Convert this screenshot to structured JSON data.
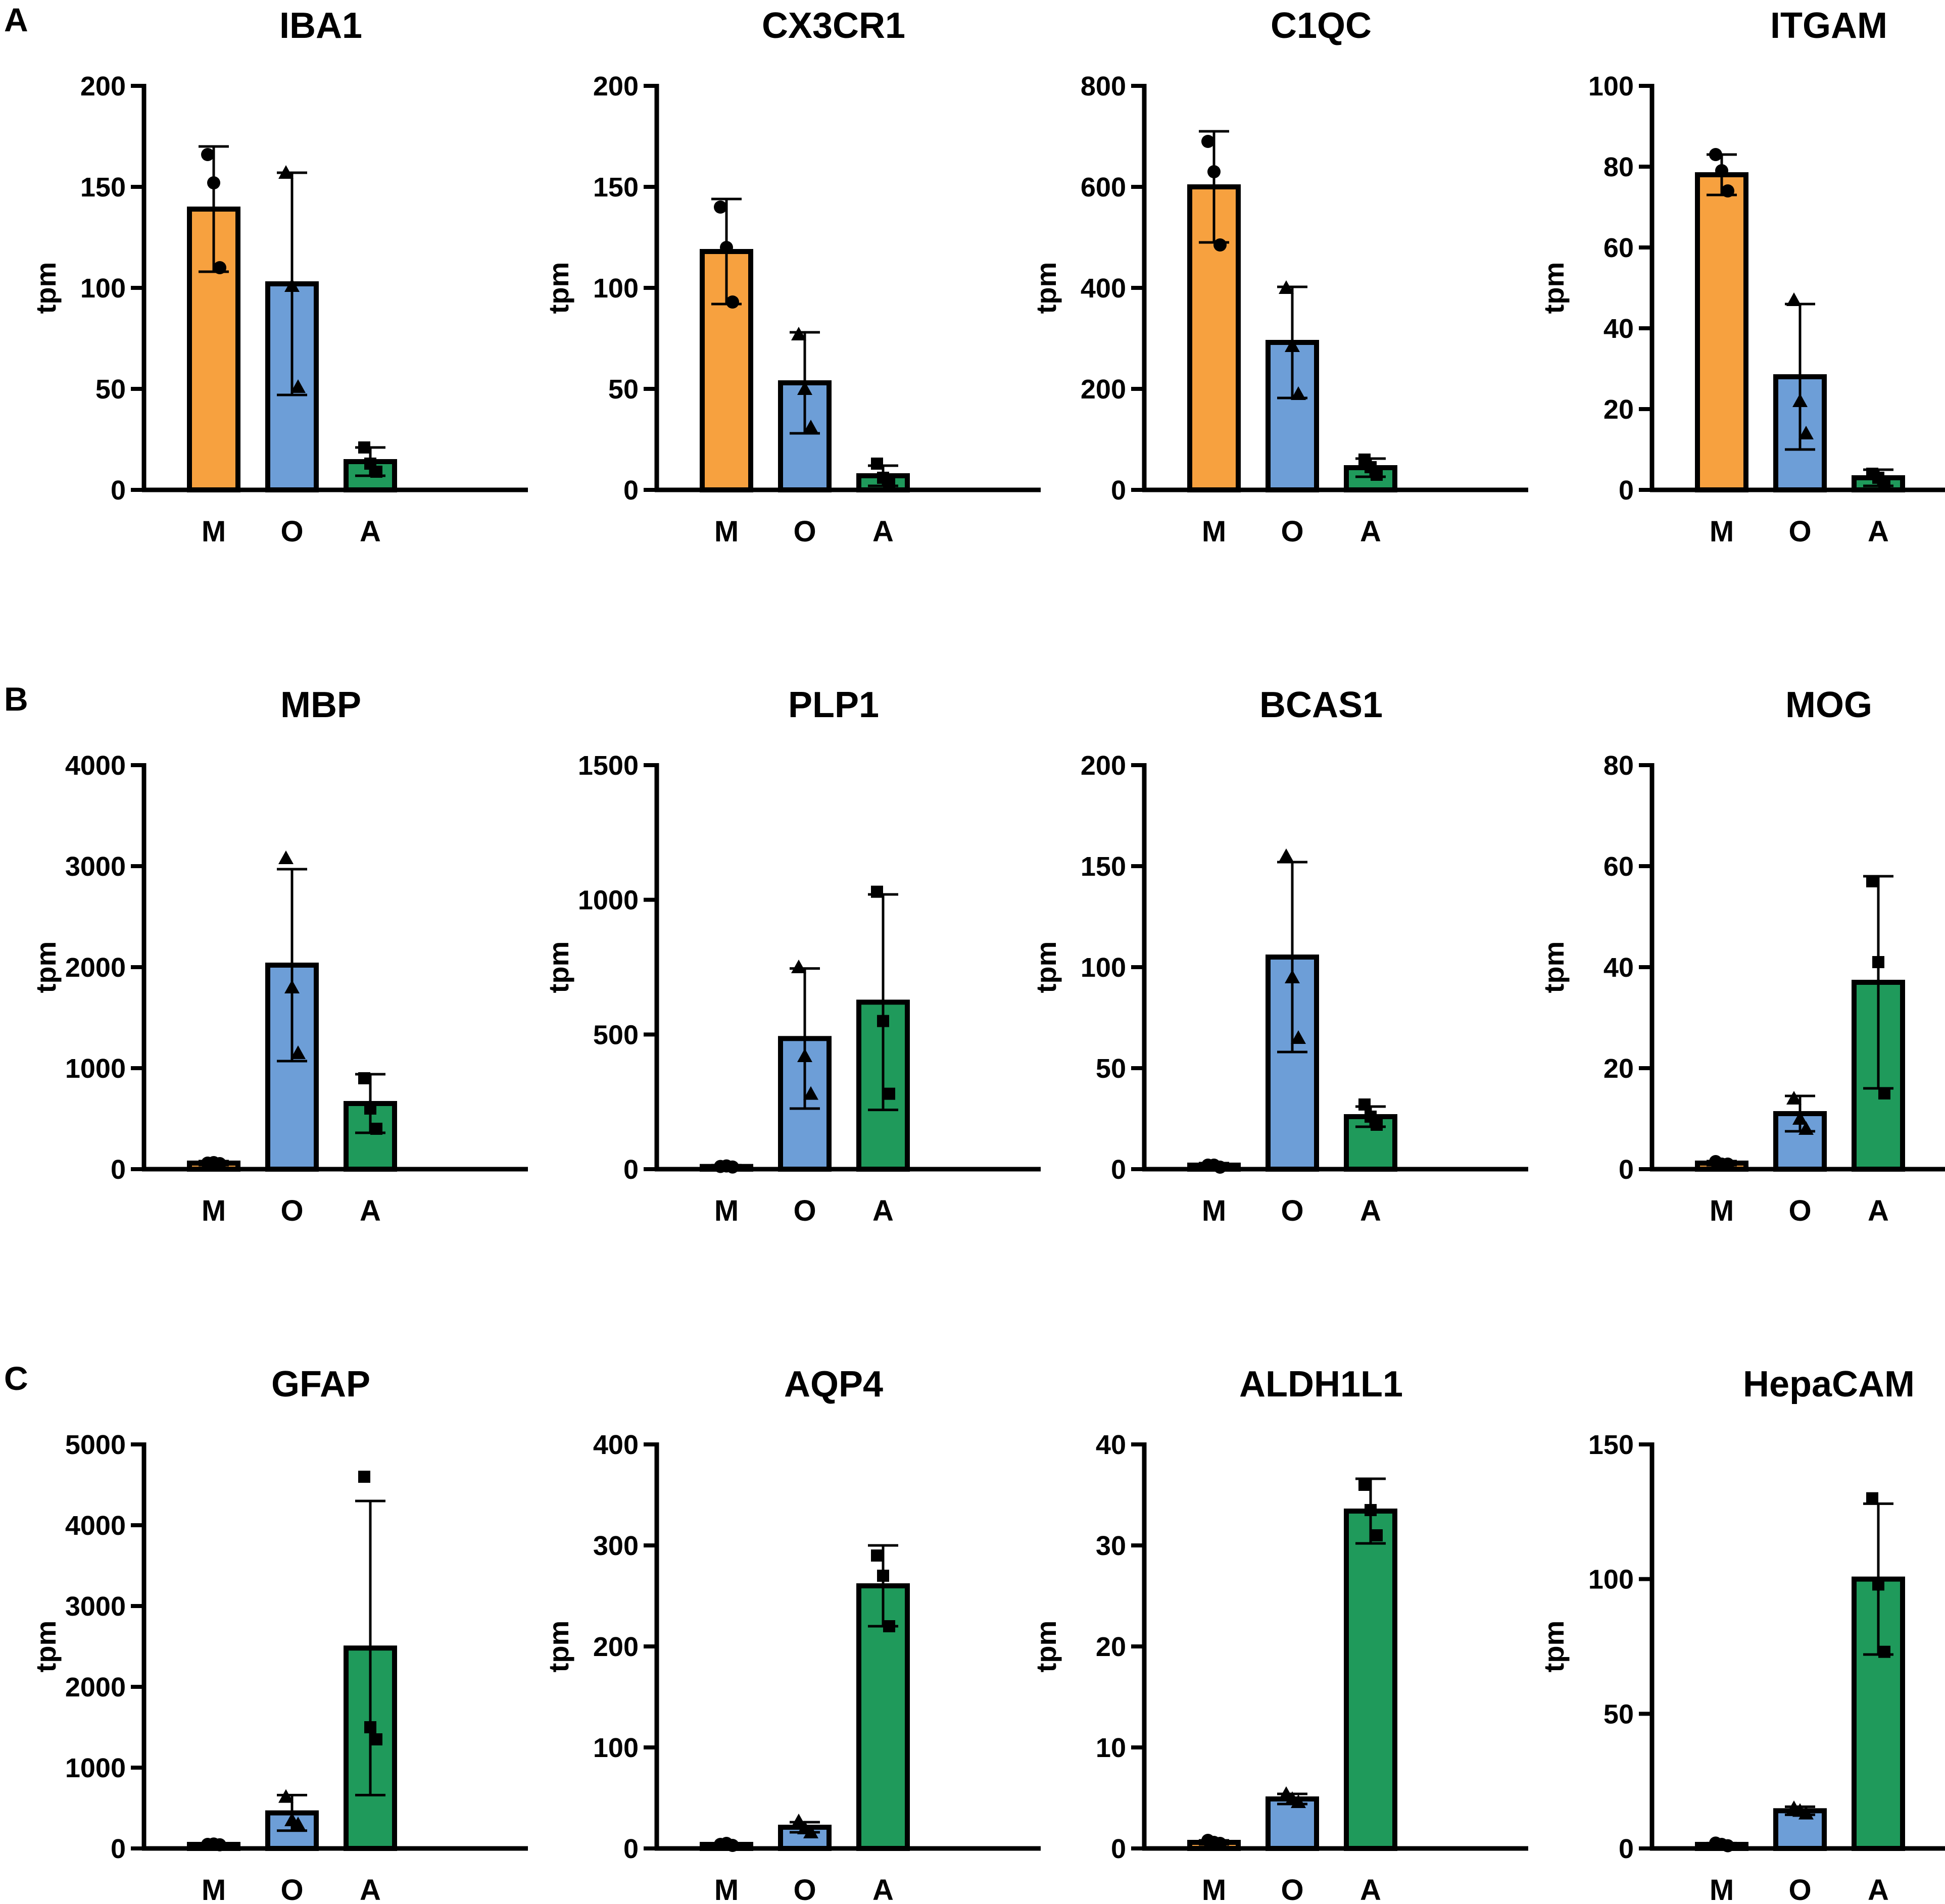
{
  "panels": [
    {
      "letter": "A",
      "row": 0
    },
    {
      "letter": "B",
      "row": 1
    },
    {
      "letter": "C",
      "row": 2
    }
  ],
  "colors": {
    "M": "#f7a13f",
    "O": "#6d9ed7",
    "A": "#1f9a5b",
    "axis": "#000000"
  },
  "markers": {
    "M": "circle",
    "O": "triangle",
    "A": "square"
  },
  "chart_data": [
    {
      "type": "bar",
      "panel": "A",
      "title": "IBA1",
      "ylabel": "tpm",
      "categories": [
        "M",
        "O",
        "A"
      ],
      "ylim": [
        0,
        200
      ],
      "yticks": [
        0,
        50,
        100,
        150,
        200
      ],
      "values": [
        139,
        102,
        14
      ],
      "errors": [
        31,
        55,
        7
      ],
      "points": [
        [
          166,
          152,
          110
        ],
        [
          157,
          101,
          51
        ],
        [
          21,
          13,
          9
        ]
      ]
    },
    {
      "type": "bar",
      "panel": "A",
      "title": "CX3CR1",
      "ylabel": "tpm",
      "categories": [
        "M",
        "O",
        "A"
      ],
      "ylim": [
        0,
        200
      ],
      "yticks": [
        0,
        50,
        100,
        150,
        200
      ],
      "values": [
        118,
        53,
        7
      ],
      "errors": [
        26,
        25,
        5
      ],
      "points": [
        [
          140,
          120,
          93
        ],
        [
          77,
          50,
          31
        ],
        [
          13,
          6,
          3
        ]
      ]
    },
    {
      "type": "bar",
      "panel": "A",
      "title": "C1QC",
      "ylabel": "tpm",
      "categories": [
        "M",
        "O",
        "A"
      ],
      "ylim": [
        0,
        800
      ],
      "yticks": [
        0,
        200,
        400,
        600,
        800
      ],
      "values": [
        600,
        292,
        44
      ],
      "errors": [
        110,
        110,
        18
      ],
      "points": [
        [
          690,
          630,
          485
        ],
        [
          400,
          285,
          190
        ],
        [
          60,
          45,
          30
        ]
      ]
    },
    {
      "type": "bar",
      "panel": "A",
      "title": "ITGAM",
      "ylabel": "tpm",
      "categories": [
        "M",
        "O",
        "A"
      ],
      "ylim": [
        0,
        100
      ],
      "yticks": [
        0,
        20,
        40,
        60,
        80,
        100
      ],
      "values": [
        78,
        28,
        3
      ],
      "errors": [
        5,
        18,
        2
      ],
      "points": [
        [
          83,
          79,
          74
        ],
        [
          47,
          22,
          14
        ],
        [
          4,
          3,
          2
        ]
      ]
    },
    {
      "type": "bar",
      "panel": "B",
      "title": "MBP",
      "ylabel": "tpm",
      "categories": [
        "M",
        "O",
        "A"
      ],
      "ylim": [
        0,
        4000
      ],
      "yticks": [
        0,
        1000,
        2000,
        3000,
        4000
      ],
      "values": [
        60,
        2020,
        650
      ],
      "errors": [
        20,
        950,
        290
      ],
      "points": [
        [
          60,
          65,
          55
        ],
        [
          3080,
          1800,
          1150
        ],
        [
          900,
          600,
          400
        ]
      ]
    },
    {
      "type": "bar",
      "panel": "B",
      "title": "PLP1",
      "ylabel": "tpm",
      "categories": [
        "M",
        "O",
        "A"
      ],
      "ylim": [
        0,
        1500
      ],
      "yticks": [
        0,
        500,
        1000,
        1500
      ],
      "values": [
        10,
        485,
        620
      ],
      "errors": [
        5,
        260,
        400
      ],
      "points": [
        [
          10,
          12,
          8
        ],
        [
          750,
          420,
          280
        ],
        [
          1030,
          550,
          280
        ]
      ]
    },
    {
      "type": "bar",
      "panel": "B",
      "title": "BCAS1",
      "ylabel": "tpm",
      "categories": [
        "M",
        "O",
        "A"
      ],
      "ylim": [
        0,
        200
      ],
      "yticks": [
        0,
        50,
        100,
        150,
        200
      ],
      "values": [
        2,
        105,
        26
      ],
      "errors": [
        1,
        47,
        5
      ],
      "points": [
        [
          2,
          2,
          1
        ],
        [
          155,
          95,
          65
        ],
        [
          32,
          26,
          22
        ]
      ]
    },
    {
      "type": "bar",
      "panel": "B",
      "title": "MOG",
      "ylabel": "tpm",
      "categories": [
        "M",
        "O",
        "A"
      ],
      "ylim": [
        0,
        80
      ],
      "yticks": [
        0,
        20,
        40,
        60,
        80
      ],
      "values": [
        1.2,
        11,
        37
      ],
      "errors": [
        0.4,
        3.5,
        21
      ],
      "points": [
        [
          1.5,
          1,
          1
        ],
        [
          14,
          10,
          8
        ],
        [
          57,
          41,
          15
        ]
      ]
    },
    {
      "type": "bar",
      "panel": "C",
      "title": "GFAP",
      "ylabel": "tpm",
      "categories": [
        "M",
        "O",
        "A"
      ],
      "ylim": [
        0,
        5000
      ],
      "yticks": [
        0,
        1000,
        2000,
        3000,
        4000,
        5000
      ],
      "values": [
        50,
        440,
        2480
      ],
      "errors": [
        10,
        220,
        1820
      ],
      "points": [
        [
          50,
          55,
          45
        ],
        [
          640,
          350,
          300
        ],
        [
          4600,
          1500,
          1350
        ]
      ]
    },
    {
      "type": "bar",
      "panel": "C",
      "title": "AQP4",
      "ylabel": "tpm",
      "categories": [
        "M",
        "O",
        "A"
      ],
      "ylim": [
        0,
        400
      ],
      "yticks": [
        0,
        100,
        200,
        300,
        400
      ],
      "values": [
        4,
        21,
        260
      ],
      "errors": [
        1,
        5,
        40
      ],
      "points": [
        [
          4,
          5,
          3
        ],
        [
          27,
          20,
          16
        ],
        [
          290,
          270,
          220
        ]
      ]
    },
    {
      "type": "bar",
      "panel": "C",
      "title": "ALDH1L1",
      "ylabel": "tpm",
      "categories": [
        "M",
        "O",
        "A"
      ],
      "ylim": [
        0,
        40
      ],
      "yticks": [
        0,
        10,
        20,
        30,
        40
      ],
      "values": [
        0.6,
        4.9,
        33.4
      ],
      "errors": [
        0.2,
        0.5,
        3.2
      ],
      "points": [
        [
          0.8,
          0.6,
          0.5
        ],
        [
          5.4,
          4.9,
          4.6
        ],
        [
          36,
          33.5,
          31
        ]
      ]
    },
    {
      "type": "bar",
      "panel": "C",
      "title": "HepaCAM",
      "ylabel": "tpm",
      "categories": [
        "M",
        "O",
        "A"
      ],
      "ylim": [
        0,
        150
      ],
      "yticks": [
        0,
        50,
        100,
        150
      ],
      "values": [
        1.5,
        14,
        100
      ],
      "errors": [
        0.5,
        1.5,
        28
      ],
      "points": [
        [
          2,
          1.5,
          1
        ],
        [
          15,
          14,
          13
        ],
        [
          130,
          98,
          73
        ]
      ]
    }
  ]
}
